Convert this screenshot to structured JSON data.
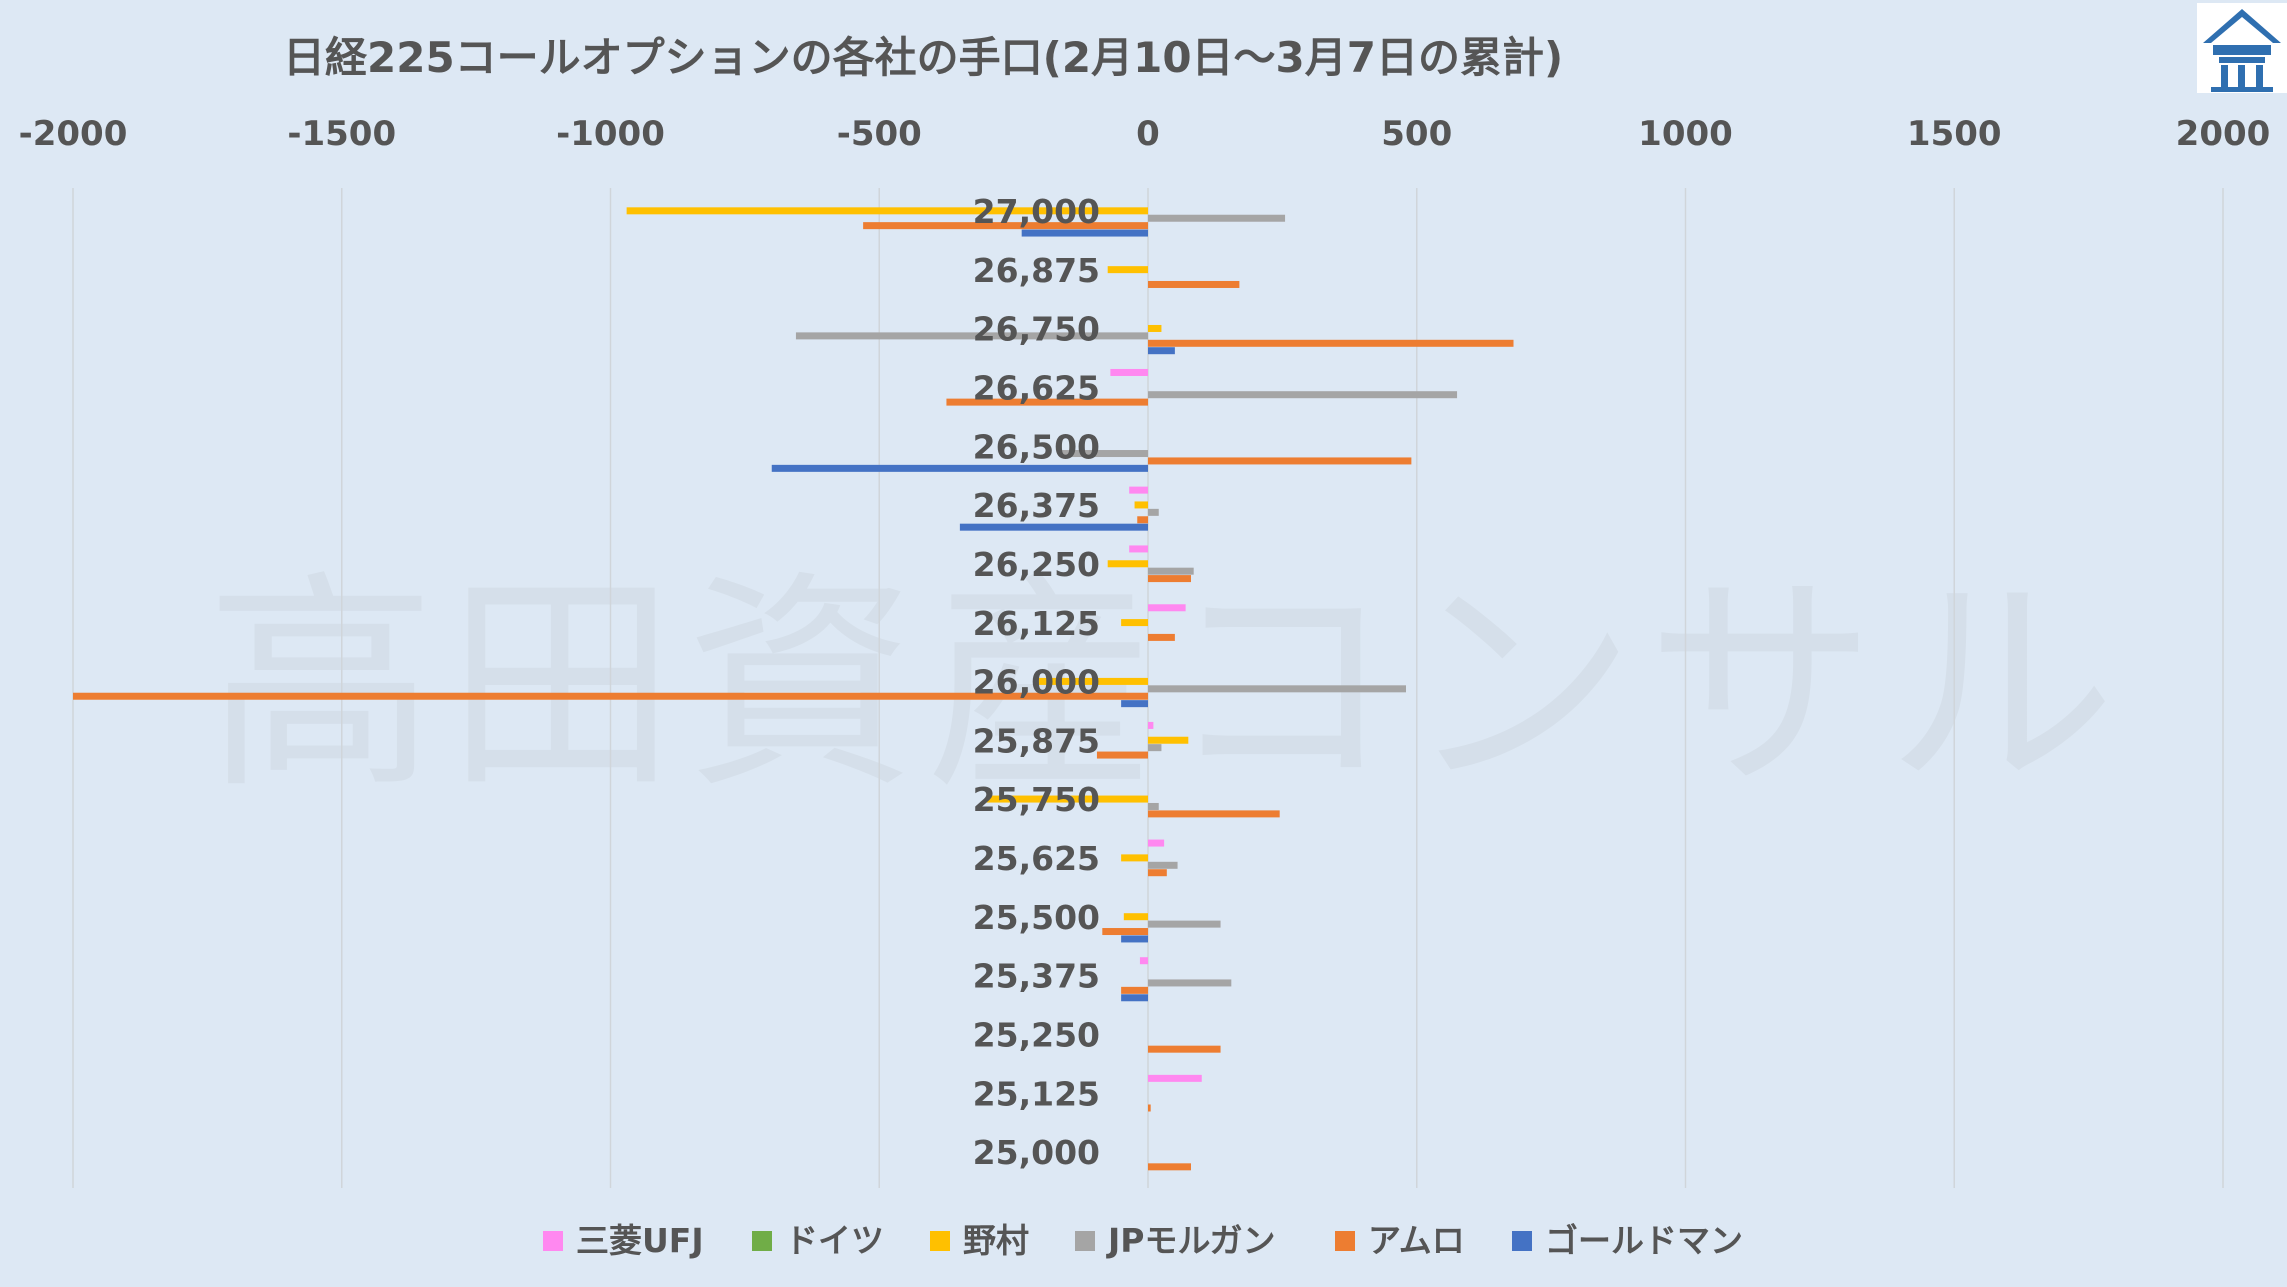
{
  "chart_data": {
    "type": "bar",
    "orientation": "horizontal",
    "title": "日経225コールオプションの各社の手口(2月10日～3月7日の累計)",
    "xlim": [
      -2000,
      2000
    ],
    "xticks": [
      -2000,
      -1500,
      -1000,
      -500,
      0,
      500,
      1000,
      1500,
      2000
    ],
    "tick_labels": [
      "-2000",
      "-1500",
      "-1000",
      "-500",
      "0",
      "500",
      "1000",
      "1500",
      "2000"
    ],
    "categories": [
      "27,000",
      "26,875",
      "26,750",
      "26,625",
      "26,500",
      "26,375",
      "26,250",
      "26,125",
      "26,000",
      "25,875",
      "25,750",
      "25,625",
      "25,500",
      "25,375",
      "25,250",
      "25,125",
      "25,000"
    ],
    "grid": "vertical",
    "legend_position": "bottom",
    "watermark": "高田資産コンサル",
    "series": [
      {
        "name": "三菱UFJ",
        "color": "#ff88f0",
        "values": [
          0,
          0,
          0,
          -70,
          0,
          -35,
          -35,
          70,
          0,
          10,
          0,
          30,
          0,
          -15,
          0,
          100,
          0
        ]
      },
      {
        "name": "ドイツ",
        "color": "#70ad47",
        "values": [
          0,
          0,
          0,
          0,
          0,
          0,
          0,
          0,
          0,
          0,
          0,
          0,
          0,
          0,
          0,
          0,
          0
        ]
      },
      {
        "name": "野村",
        "color": "#ffc000",
        "values": [
          -970,
          -75,
          25,
          0,
          0,
          -25,
          -75,
          -50,
          -210,
          75,
          -300,
          -50,
          -45,
          0,
          0,
          0,
          0
        ]
      },
      {
        "name": "JPモルガン",
        "color": "#a5a5a5",
        "values": [
          255,
          0,
          -655,
          575,
          -160,
          20,
          85,
          0,
          480,
          25,
          20,
          55,
          135,
          155,
          0,
          0,
          0
        ]
      },
      {
        "name": "アムロ",
        "color": "#ed7d31",
        "values": [
          -530,
          170,
          680,
          -375,
          490,
          -20,
          80,
          50,
          -2000,
          -95,
          245,
          35,
          -85,
          -50,
          135,
          5,
          80
        ]
      },
      {
        "name": "ゴールドマン",
        "color": "#4472c4",
        "values": [
          -235,
          0,
          50,
          0,
          -700,
          -350,
          0,
          0,
          -50,
          0,
          0,
          0,
          -50,
          -50,
          0,
          0,
          0
        ]
      }
    ]
  },
  "colors": {
    "background": "#dde8f4",
    "text": "#555555",
    "gridline": "#d0d5da",
    "watermark": "#c8d0d8"
  },
  "logo_icon": "shrine-roof-logo-icon"
}
